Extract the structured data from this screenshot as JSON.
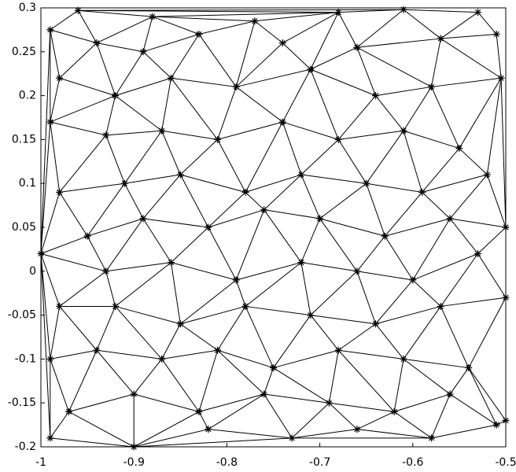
{
  "chart_data": {
    "type": "mesh",
    "color": "#000000",
    "x": [
      -0.96,
      -0.88,
      -0.77,
      -0.68,
      -0.61,
      -0.53,
      -0.99,
      -0.94,
      -0.89,
      -0.83,
      -0.74,
      -0.66,
      -0.57,
      -0.51,
      -0.98,
      -0.92,
      -0.86,
      -0.79,
      -0.71,
      -0.64,
      -0.58,
      -0.505,
      -0.99,
      -0.93,
      -0.87,
      -0.81,
      -0.74,
      -0.68,
      -0.61,
      -0.55,
      -0.98,
      -0.91,
      -0.85,
      -0.78,
      -0.72,
      -0.65,
      -0.59,
      -0.52,
      -0.95,
      -0.89,
      -0.82,
      -0.76,
      -0.7,
      -0.63,
      -0.56,
      -0.5,
      -1,
      -0.93,
      -0.86,
      -0.79,
      -0.72,
      -0.66,
      -0.6,
      -0.53,
      -0.98,
      -0.92,
      -0.85,
      -0.78,
      -0.71,
      -0.64,
      -0.57,
      -0.5,
      -0.99,
      -0.94,
      -0.87,
      -0.81,
      -0.75,
      -0.68,
      -0.61,
      -0.54,
      -0.97,
      -0.9,
      -0.83,
      -0.76,
      -0.69,
      -0.62,
      -0.56,
      -0.5,
      -0.99,
      -0.9,
      -0.82,
      -0.73,
      -0.66,
      -0.58,
      -0.51
    ],
    "y": [
      0.297,
      0.29,
      0.285,
      0.295,
      0.298,
      0.295,
      0.275,
      0.26,
      0.25,
      0.27,
      0.26,
      0.255,
      0.265,
      0.27,
      0.22,
      0.2,
      0.22,
      0.21,
      0.23,
      0.2,
      0.21,
      0.22,
      0.17,
      0.155,
      0.16,
      0.15,
      0.17,
      0.15,
      0.16,
      0.14,
      0.09,
      0.1,
      0.11,
      0.09,
      0.11,
      0.1,
      0.09,
      0.11,
      0.04,
      0.06,
      0.05,
      0.07,
      0.06,
      0.04,
      0.06,
      0.05,
      0.02,
      0.0,
      0.01,
      -0.01,
      0.01,
      0.0,
      -0.01,
      0.02,
      -0.04,
      -0.04,
      -0.06,
      -0.04,
      -0.05,
      -0.06,
      -0.04,
      -0.03,
      -0.1,
      -0.09,
      -0.1,
      -0.09,
      -0.11,
      -0.09,
      -0.1,
      -0.11,
      -0.16,
      -0.14,
      -0.16,
      -0.14,
      -0.15,
      -0.16,
      -0.14,
      -0.17,
      -0.19,
      -0.2,
      -0.18,
      -0.19,
      -0.18,
      -0.19,
      -0.175
    ],
    "xlim": [
      -1,
      -0.5
    ],
    "xticks": [
      -1,
      -0.9,
      -0.8,
      -0.7,
      -0.6,
      -0.5
    ],
    "ylim": [
      -0.2,
      0.3
    ],
    "yticks": [
      -0.2,
      -0.15,
      -0.1,
      -0.05,
      0,
      0.05,
      0.1,
      0.15,
      0.2,
      0.25,
      0.3
    ]
  }
}
